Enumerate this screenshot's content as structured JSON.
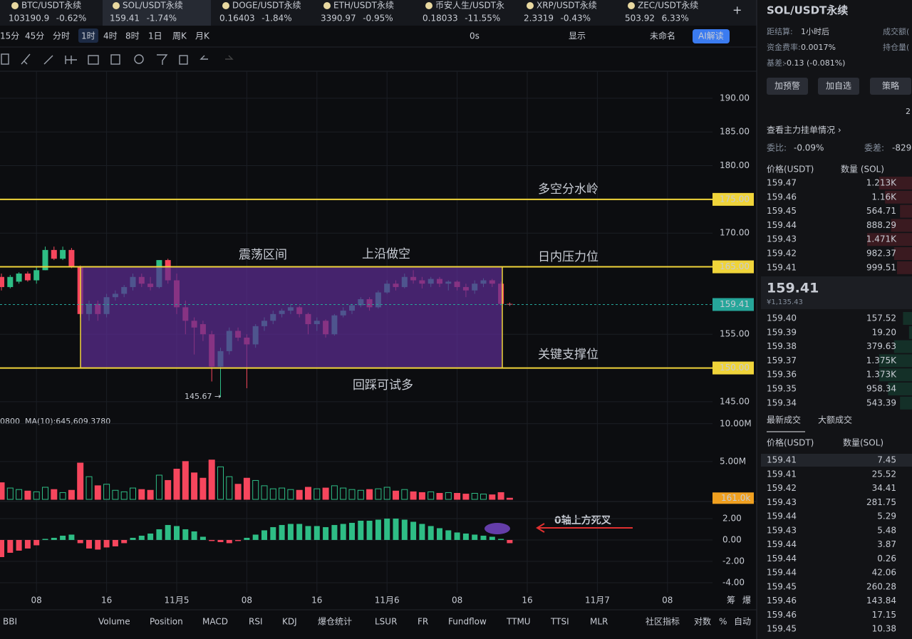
{
  "tabs": [
    {
      "name": "BTC/USDT永续",
      "price": "103190.9",
      "change": "-0.62%",
      "color": "#f6465d"
    },
    {
      "name": "SOL/USDT永续",
      "price": "159.41",
      "change": "-1.74%",
      "color": "#f6465d"
    },
    {
      "name": "DOGE/USDT永续",
      "price": "0.16403",
      "change": "-1.84%",
      "color": "#f6465d"
    },
    {
      "name": "ETH/USDT永续",
      "price": "3390.97",
      "change": "-0.95%",
      "color": "#2ebd85"
    },
    {
      "name": "币安人生/USDT永",
      "price": "0.18033",
      "change": "-11.55%",
      "color": "#2ebd85"
    },
    {
      "name": "XRP/USDT永续",
      "price": "2.3319",
      "change": "-0.43%",
      "color": "#2ebd85"
    },
    {
      "name": "ZEC/USDT永续",
      "price": "503.92",
      "change": "6.33%",
      "color": "#f6465d"
    }
  ],
  "add_tab": "+",
  "intervals": [
    "15分",
    "45分",
    "分时",
    "1时",
    "4时",
    "8时",
    "1日",
    "周K",
    "月K"
  ],
  "active_interval": 3,
  "toolbar": {
    "timer": "0s",
    "display": "显示",
    "layout": "未命名",
    "ai": "AI解读"
  },
  "chart": {
    "ylim": [
      143.3,
      194
    ],
    "yticks": [
      {
        "value": 190,
        "label": "190.00"
      },
      {
        "value": 185,
        "label": "185.00"
      },
      {
        "value": 180,
        "label": "180.00"
      },
      {
        "value": 170,
        "label": "170.00"
      },
      {
        "value": 155,
        "label": "155.00"
      },
      {
        "value": 145,
        "label": "145.00"
      }
    ],
    "levels": [
      {
        "value": 175,
        "label": "175.00"
      },
      {
        "value": 165,
        "label": "165.00"
      },
      {
        "value": 150,
        "label": "150.00"
      }
    ],
    "last_price": {
      "value": 159.41,
      "label": "159.41"
    },
    "candles": [
      [
        163.5,
        164,
        161.5,
        162
      ],
      [
        162,
        163.8,
        161.8,
        163.5
      ],
      [
        162.8,
        164.2,
        162.5,
        164
      ],
      [
        164,
        164.3,
        162.8,
        163
      ],
      [
        163,
        165,
        162.5,
        164.5
      ],
      [
        164.5,
        168,
        164.5,
        167.5
      ],
      [
        167.5,
        168,
        166,
        166.2
      ],
      [
        166.2,
        168,
        166,
        167.5
      ],
      [
        167.5,
        167.8,
        164.8,
        165
      ],
      [
        165,
        165.2,
        157.5,
        158
      ],
      [
        158,
        160,
        157,
        159.5
      ],
      [
        159.5,
        160,
        157,
        158
      ],
      [
        158,
        161,
        157.5,
        160.5
      ],
      [
        160.5,
        161.5,
        160,
        161
      ],
      [
        161,
        162.3,
        160.5,
        162
      ],
      [
        162,
        164,
        161.5,
        163.5
      ],
      [
        163.5,
        164,
        162,
        162.5
      ],
      [
        162.5,
        163.5,
        161.5,
        162
      ],
      [
        162,
        166,
        161.8,
        166
      ],
      [
        166,
        166.2,
        162.5,
        163
      ],
      [
        163,
        164,
        158,
        159
      ],
      [
        159,
        160,
        155,
        157
      ],
      [
        157,
        157.5,
        152,
        156
      ],
      [
        156.5,
        157,
        154,
        155
      ],
      [
        155,
        155.5,
        148,
        150.2
      ],
      [
        150.2,
        153,
        145.67,
        152.5
      ],
      [
        152.5,
        156,
        152,
        155.5
      ],
      [
        155.5,
        156,
        154,
        154.5
      ],
      [
        154.5,
        155,
        147,
        153.5
      ],
      [
        153.5,
        156.5,
        153,
        156.2
      ],
      [
        156.2,
        157.5,
        155.5,
        157
      ],
      [
        157,
        158.5,
        156.5,
        158
      ],
      [
        158,
        158.8,
        157.5,
        158.5
      ],
      [
        158.5,
        159.5,
        158,
        159
      ],
      [
        159,
        159.2,
        157.5,
        158
      ],
      [
        158,
        158.2,
        155,
        156.5
      ],
      [
        156.5,
        157.5,
        155.5,
        157
      ],
      [
        157,
        157.2,
        154.5,
        155
      ],
      [
        155,
        158,
        154.8,
        157.8
      ],
      [
        157.8,
        159,
        157.5,
        158.5
      ],
      [
        158.5,
        159.5,
        158,
        159.3
      ],
      [
        159.3,
        160.5,
        159,
        160.2
      ],
      [
        160.2,
        160.5,
        158.5,
        159
      ],
      [
        159,
        161.5,
        158.8,
        161.2
      ],
      [
        161.2,
        163,
        161,
        162.5
      ],
      [
        162.5,
        163,
        161.5,
        162
      ],
      [
        162,
        164,
        161.8,
        163.5
      ],
      [
        163.5,
        164.5,
        162.5,
        163
      ],
      [
        163,
        163.5,
        161.8,
        162.5
      ],
      [
        162.5,
        163.5,
        162,
        163.2
      ],
      [
        163.2,
        163.5,
        162,
        162.5
      ],
      [
        162.5,
        163,
        161.5,
        162.8
      ],
      [
        162.8,
        163,
        161.5,
        162
      ],
      [
        162,
        162.5,
        160.5,
        161.5
      ],
      [
        161.5,
        163,
        161,
        162.5
      ],
      [
        162.5,
        163.3,
        162,
        163
      ],
      [
        163,
        163.2,
        162,
        162.5
      ],
      [
        162.5,
        162.8,
        159.3,
        159.5
      ],
      [
        159.5,
        159.7,
        159.2,
        159.41
      ]
    ],
    "low_label": "145.67 →",
    "annotations": [
      "多空分水岭",
      "震荡区间",
      "上沿做空",
      "日内压力位",
      "关键支撑位",
      "回踩可试多",
      "0轴上方死叉"
    ],
    "ma_prefix": "0800",
    "ma10": "MA(10):645,609.3780",
    "volume": {
      "values": [
        2.2,
        1.5,
        1.3,
        1.1,
        1.0,
        1.6,
        1.3,
        0.9,
        1.2,
        4.8,
        3.0,
        1.8,
        2.0,
        1.2,
        1.0,
        1.5,
        1.3,
        1.2,
        3.2,
        2.5,
        4.0,
        5.0,
        3.5,
        2.8,
        5.2,
        4.3,
        3.0,
        2.0,
        2.8,
        2.5,
        1.8,
        1.4,
        1.5,
        1.3,
        1.2,
        1.6,
        1.4,
        1.5,
        1.8,
        1.5,
        1.3,
        1.2,
        1.3,
        1.4,
        1.6,
        1.1,
        1.3,
        1.0,
        0.9,
        1.0,
        0.8,
        0.9,
        0.8,
        0.7,
        0.8,
        0.7,
        0.6,
        0.9,
        0.161
      ],
      "ylim": [
        0,
        11.2
      ],
      "yticks": [
        {
          "value": 10,
          "label": "10.00M"
        },
        {
          "value": 5,
          "label": "5.00M"
        }
      ],
      "last": {
        "value": 0.161,
        "label": "161.0k"
      }
    },
    "macd": {
      "values": [
        -1.6,
        -1.2,
        -1.0,
        -0.8,
        -0.5,
        0.1,
        0.2,
        0.4,
        0.5,
        -0.3,
        -0.8,
        -0.9,
        -0.7,
        -0.6,
        -0.3,
        0.2,
        0.4,
        0.6,
        1.0,
        1.4,
        1.3,
        1.0,
        0.8,
        0.3,
        -0.1,
        -0.2,
        -0.3,
        -0.1,
        0.2,
        0.5,
        0.9,
        1.2,
        1.4,
        1.5,
        1.5,
        1.3,
        1.3,
        1.2,
        1.4,
        1.5,
        1.6,
        1.8,
        1.8,
        1.9,
        2.0,
        2.0,
        1.9,
        1.7,
        1.5,
        1.3,
        1.1,
        0.9,
        0.7,
        0.6,
        0.5,
        0.4,
        0.3,
        0.1,
        -0.3
      ],
      "ylim": [
        -4.8,
        3.33
      ],
      "yticks": [
        {
          "value": 2,
          "label": "2.00"
        },
        {
          "value": 0,
          "label": "0.00"
        },
        {
          "value": -2,
          "label": "-2.00"
        },
        {
          "value": -4,
          "label": "-4.00"
        }
      ]
    },
    "xticks": [
      "08",
      "16",
      "11月5",
      "08",
      "16",
      "11月6",
      "08",
      "16",
      "11月7",
      "08"
    ],
    "side_labels": [
      "筹",
      "爆"
    ],
    "colors": {
      "up": "#2ebd85",
      "down": "#f6465d",
      "level": "#f0d43a",
      "box": "#5b2d91",
      "last": "#26a69a",
      "vol_tag": "#f0a020"
    }
  },
  "indicators": [
    "BBI",
    "Volume",
    "Position",
    "MACD",
    "RSI",
    "KDJ",
    "爆仓统计",
    "LSUR",
    "FR",
    "Fundflow",
    "TTMU",
    "TTSI",
    "MLR"
  ],
  "active_indicators": [
    1,
    3
  ],
  "bottom_right": {
    "community": "社区指标",
    "log": "对数",
    "percent": "%",
    "auto": "自动"
  },
  "panel": {
    "symbol": "SOL/USDT永续",
    "info": [
      {
        "label": "距结算:",
        "value": "1小时后"
      },
      {
        "label": "资金费率:",
        "value": "0.0017%"
      },
      {
        "label": "基差:",
        "value": "-0.13 (-0.081%)"
      }
    ],
    "info_right": [
      "成交额(",
      "持仓量("
    ],
    "buttons": [
      "加预警",
      "加自选",
      "策略"
    ],
    "depth_digit": "2",
    "main_orders": "查看主力挂单情况 ›",
    "ratio": {
      "label": "委比:",
      "value": "-0.09%"
    },
    "diff": {
      "label": "委差:",
      "value": "-829"
    },
    "book_header": [
      "价格(USDT)",
      "数量 (SOL)"
    ],
    "asks": [
      [
        "159.47",
        "1.213K"
      ],
      [
        "159.46",
        "1.16K"
      ],
      [
        "159.45",
        "564.71"
      ],
      [
        "159.44",
        "888.29"
      ],
      [
        "159.43",
        "1.471K"
      ],
      [
        "159.42",
        "982.37"
      ],
      [
        "159.41",
        "999.51"
      ]
    ],
    "mid": {
      "price": "159.41",
      "cny": "¥1,135.43"
    },
    "bids": [
      [
        "159.40",
        "157.52"
      ],
      [
        "159.39",
        "19.20"
      ],
      [
        "159.38",
        "379.63"
      ],
      [
        "159.37",
        "1.375K"
      ],
      [
        "159.36",
        "1.373K"
      ],
      [
        "159.35",
        "958.34"
      ],
      [
        "159.34",
        "543.39"
      ]
    ],
    "trade_tabs": [
      "最新成交",
      "大额成交"
    ],
    "trade_header": [
      "价格(USDT)",
      "数量(SOL)"
    ],
    "trades": [
      {
        "price": "159.41",
        "qty": "7.45",
        "color": "#2ebd85"
      },
      {
        "price": "159.41",
        "qty": "25.52",
        "color": "#f6465d"
      },
      {
        "price": "159.42",
        "qty": "34.41",
        "color": "#f6465d"
      },
      {
        "price": "159.43",
        "qty": "281.75",
        "color": "#f6465d"
      },
      {
        "price": "159.44",
        "qty": "5.29",
        "color": "#2ebd85"
      },
      {
        "price": "159.43",
        "qty": "5.48",
        "color": "#f6465d"
      },
      {
        "price": "159.44",
        "qty": "3.87",
        "color": "#2ebd85"
      },
      {
        "price": "159.44",
        "qty": "0.26",
        "color": "#2ebd85"
      },
      {
        "price": "159.44",
        "qty": "42.06",
        "color": "#f6465d"
      },
      {
        "price": "159.45",
        "qty": "260.28",
        "color": "#f6465d"
      },
      {
        "price": "159.46",
        "qty": "143.84",
        "color": "#2ebd85"
      },
      {
        "price": "159.46",
        "qty": "17.15",
        "color": "#2ebd85"
      },
      {
        "price": "159.45",
        "qty": "10.38",
        "color": "#f6465d"
      }
    ]
  }
}
